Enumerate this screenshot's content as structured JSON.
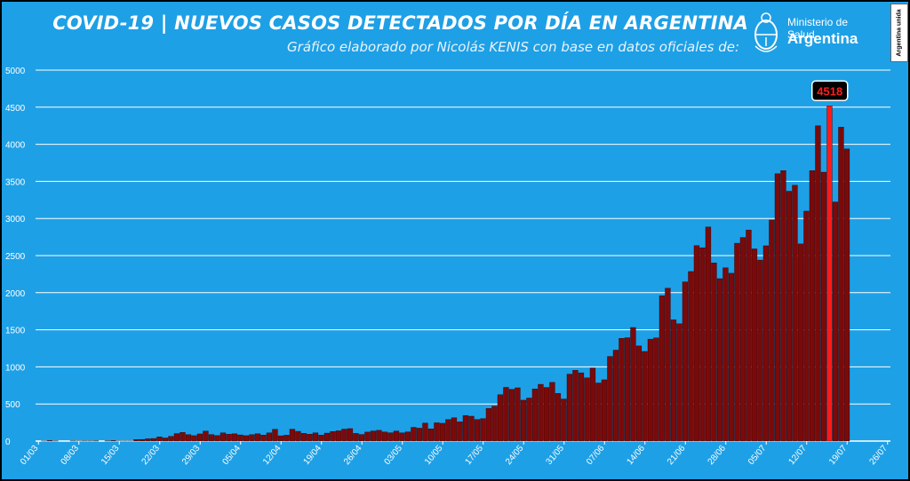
{
  "header": {
    "title": "COVID-19  |  NUEVOS CASOS DETECTADOS POR DÍA EN ARGENTINA",
    "subtitle": "Gráfico elaborado por Nicolás KENIS con base en datos oficiales de:",
    "logo_line1": "Ministerio de Salud",
    "logo_line2": "Argentina",
    "badge": "Argentina unida"
  },
  "colors": {
    "background": "#1ea0e6",
    "bar": "#7a0a0a",
    "bar_highlight": "#ff1a1a",
    "gridline": "#ffffff",
    "callout_bg": "#000000",
    "callout_text": "#ff2020"
  },
  "chart_data": {
    "type": "bar",
    "title": "COVID-19  |  NUEVOS CASOS DETECTADOS POR DÍA EN ARGENTINA",
    "xlabel": "",
    "ylabel": "",
    "ylim": [
      0,
      5000
    ],
    "yticks": [
      0,
      500,
      1000,
      1500,
      2000,
      2500,
      3000,
      3500,
      4000,
      4500,
      5000
    ],
    "xtick_labels": [
      "01/03",
      "08/03",
      "15/03",
      "22/03",
      "29/03",
      "05/04",
      "12/04",
      "19/04",
      "26/04",
      "03/05",
      "10/05",
      "17/05",
      "24/05",
      "31/05",
      "07/06",
      "14/06",
      "21/06",
      "28/06",
      "05/07",
      "12/07",
      "19/07",
      "26/07"
    ],
    "grid": true,
    "start_label": "01/03",
    "highlight": {
      "label": "4518",
      "value": 4518
    },
    "values": [
      0,
      1,
      7,
      2,
      0,
      0,
      2,
      1,
      2,
      2,
      3,
      0,
      3,
      7,
      1,
      1,
      1,
      21,
      22,
      31,
      35,
      56,
      42,
      64,
      101,
      117,
      87,
      73,
      96,
      134,
      88,
      74,
      110,
      92,
      98,
      83,
      73,
      87,
      99,
      81,
      110,
      158,
      71,
      79,
      160,
      131,
      104,
      93,
      111,
      81,
      107,
      128,
      138,
      161,
      168,
      103,
      89,
      121,
      136,
      145,
      123,
      112,
      135,
      110,
      124,
      185,
      174,
      243,
      165,
      246,
      240,
      290,
      314,
      259,
      345,
      335,
      291,
      303,
      440,
      471,
      625,
      724,
      698,
      718,
      551,
      580,
      702,
      765,
      723,
      791,
      642,
      567,
      902,
      954,
      920,
      853,
      983,
      783,
      826,
      1141,
      1226,
      1384,
      1393,
      1531,
      1282,
      1208,
      1374,
      1391,
      1958,
      2060,
      1634,
      1581,
      2146,
      2285,
      2635,
      2606,
      2886,
      2401,
      2189,
      2335,
      2262,
      2667,
      2744,
      2845,
      2590,
      2439,
      2632,
      2979,
      3604,
      3645,
      3367,
      3449,
      2657,
      3099,
      3645,
      4250,
      3624,
      4518,
      3223,
      4231,
      3937
    ]
  }
}
